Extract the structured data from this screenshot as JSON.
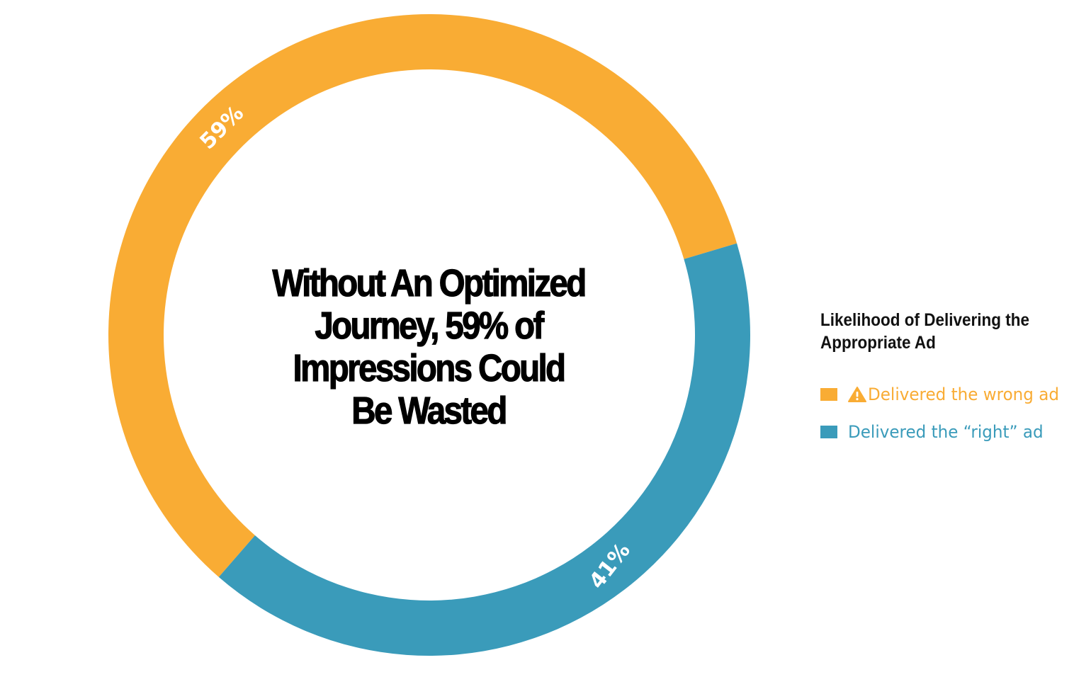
{
  "chart_data": {
    "type": "pie",
    "variant": "donut",
    "title": "Without An Optimized Journey, 59% of Impressions Could Be Wasted",
    "title_lines": [
      "Without An Optimized",
      "Journey, 59% of",
      "Impressions Could",
      "Be Wasted"
    ],
    "legend_title": "Likelihood of Delivering the Appropriate Ad",
    "legend_placement": "right",
    "slices": [
      {
        "name": "Delivered the wrong ad",
        "value": 59,
        "label": "59%",
        "color": "#F9AC34",
        "icon": "warning-icon"
      },
      {
        "name": "Delivered the “right” ad",
        "value": 41,
        "label": "41%",
        "color": "#3A9BBA"
      }
    ]
  },
  "colors": {
    "wrong": "#F9AC34",
    "right": "#3A9BBA",
    "title": "#000000",
    "legend_title": "#111111",
    "background": "#FFFFFF"
  }
}
